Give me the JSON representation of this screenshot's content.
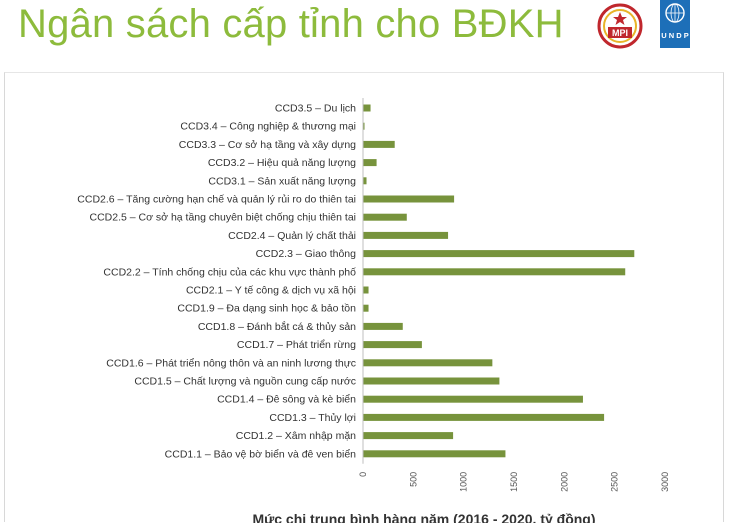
{
  "header": {
    "title": "Ngân sách cấp tỉnh cho BĐKH",
    "mpi_logo_text": "MPI",
    "undp_logo_text": "U N D P"
  },
  "colors": {
    "title": "#8dbb3c",
    "bar": "#77933c",
    "undp_blue": "#1d6fb8",
    "mpi_red": "#c0272d",
    "mpi_gold": "#e8b42a"
  },
  "chart_data": {
    "type": "bar",
    "orientation": "horizontal",
    "title": "",
    "xlabel": "Mức chi trung bình hàng năm (2016 - 2020, tỷ đồng)",
    "ylabel": "",
    "xlim": [
      0,
      3000
    ],
    "xticks": [
      0,
      500,
      1000,
      1500,
      2000,
      2500,
      3000
    ],
    "grid": false,
    "categories": [
      "CCD3.5 – Du lịch",
      "CCD3.4 – Công nghiệp & thương mại",
      "CCD3.3 – Cơ sở hạ tầng và xây dựng",
      "CCD3.2 – Hiệu quả năng lượng",
      "CCD3.1 – Sản xuất năng lượng",
      "CCD2.6 – Tăng cường hạn chế và quản lý rủi ro do thiên tai",
      "CCD2.5 – Cơ sở hạ tầng chuyên biệt chống chịu thiên tai",
      "CCD2.4 – Quản lý chất thải",
      "CCD2.3 – Giao thông",
      "CCD2.2 – Tính chống chịu của các khu vực thành phố",
      "CCD2.1 – Y tế công & dịch vụ xã hội",
      "CCD1.9 – Đa dạng sinh học & bảo tồn",
      "CCD1.8 – Đánh bắt cá & thủy sản",
      "CCD1.7 – Phát triển rừng",
      "CCD1.6 – Phát triển nông thôn và an ninh lương thực",
      "CCD1.5 – Chất lượng và nguồn cung cấp nước",
      "CCD1.4 – Đê sông và kè biển",
      "CCD1.3 – Thủy lợi",
      "CCD1.2 – Xâm nhập mặn",
      "CCD1.1 – Bảo vệ bờ biển và đê ven biển"
    ],
    "values": [
      70,
      5,
      310,
      130,
      30,
      900,
      430,
      840,
      2690,
      2600,
      50,
      50,
      390,
      580,
      1280,
      1350,
      2180,
      2390,
      890,
      1410
    ]
  }
}
